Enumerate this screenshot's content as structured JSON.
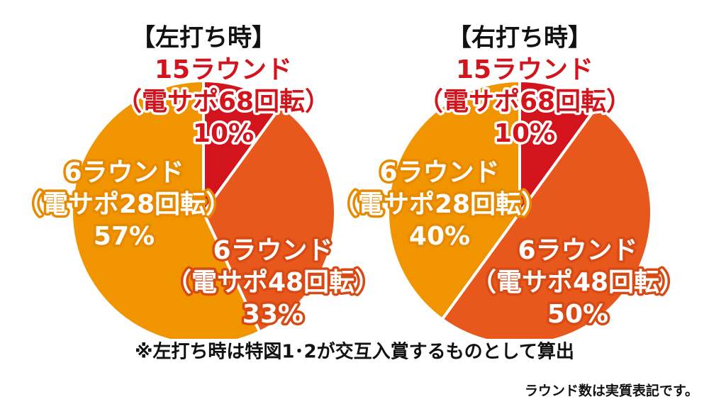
{
  "chart_data": [
    {
      "type": "pie",
      "title": "【左打ち時】",
      "categories": [
        "15ラウンド",
        "6ラウンド",
        "6ラウンド"
      ],
      "sublabels": [
        "（電サポ68回転）",
        "（電サポ48回転）",
        "（電サポ28回転）"
      ],
      "values": [
        10,
        33,
        57
      ],
      "value_labels": [
        "10%",
        "33%",
        "57%"
      ],
      "colors": [
        "#d3141d",
        "#e8571c",
        "#f09500"
      ]
    },
    {
      "type": "pie",
      "title": "【右打ち時】",
      "categories": [
        "15ラウンド",
        "6ラウンド",
        "6ラウンド"
      ],
      "sublabels": [
        "（電サポ68回転）",
        "（電サポ48回転）",
        "（電サポ28回転）"
      ],
      "values": [
        10,
        50,
        40
      ],
      "value_labels": [
        "10%",
        "50%",
        "40%"
      ],
      "colors": [
        "#d3141d",
        "#e8571c",
        "#f09500"
      ]
    }
  ],
  "footnote": "※左打ち時は特図1･2が交互入賞するものとして算出",
  "note": "ラウンド数は実質表記です。"
}
